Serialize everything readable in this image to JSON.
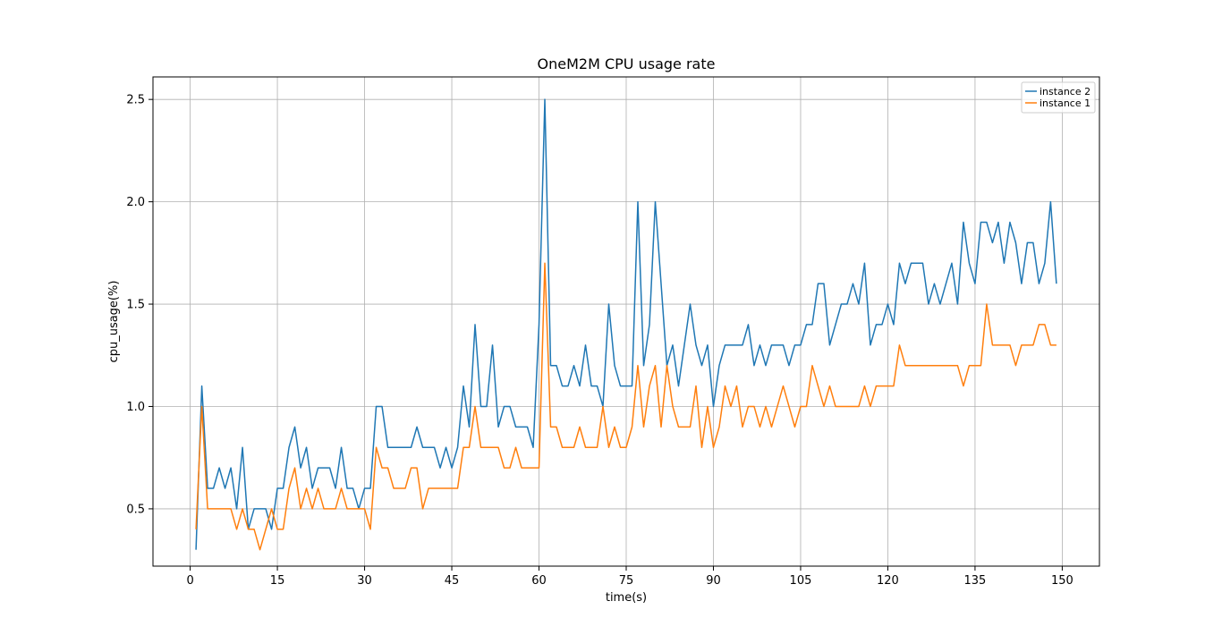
{
  "chart_data": {
    "type": "line",
    "title": "OneM2M CPU usage rate",
    "xlabel": "time(s)",
    "ylabel": "cpu_usage(%)",
    "xlim": [
      -6.4,
      156.4
    ],
    "ylim": [
      0.22,
      2.61
    ],
    "xticks": [
      0,
      15,
      30,
      45,
      60,
      75,
      90,
      105,
      120,
      135,
      150
    ],
    "yticks": [
      0.5,
      1.0,
      1.5,
      2.0,
      2.5
    ],
    "grid": true,
    "legend_position": "top-right",
    "x_start": 1,
    "series": [
      {
        "name": "instance 2",
        "color": "#1f77b4",
        "values": [
          0.3,
          1.1,
          0.6,
          0.6,
          0.7,
          0.6,
          0.7,
          0.5,
          0.8,
          0.4,
          0.5,
          0.5,
          0.5,
          0.4,
          0.6,
          0.6,
          0.8,
          0.9,
          0.7,
          0.8,
          0.6,
          0.7,
          0.7,
          0.7,
          0.6,
          0.8,
          0.6,
          0.6,
          0.5,
          0.6,
          0.6,
          1.0,
          1.0,
          0.8,
          0.8,
          0.8,
          0.8,
          0.8,
          0.9,
          0.8,
          0.8,
          0.8,
          0.7,
          0.8,
          0.7,
          0.8,
          1.1,
          0.9,
          1.4,
          1.0,
          1.0,
          1.3,
          0.9,
          1.0,
          1.0,
          0.9,
          0.9,
          0.9,
          0.8,
          1.4,
          2.5,
          1.2,
          1.2,
          1.1,
          1.1,
          1.2,
          1.1,
          1.3,
          1.1,
          1.1,
          1.0,
          1.5,
          1.2,
          1.1,
          1.1,
          1.1,
          2.0,
          1.2,
          1.4,
          2.0,
          1.6,
          1.2,
          1.3,
          1.1,
          1.3,
          1.5,
          1.3,
          1.2,
          1.3,
          1.0,
          1.2,
          1.3,
          1.3,
          1.3,
          1.3,
          1.4,
          1.2,
          1.3,
          1.2,
          1.3,
          1.3,
          1.3,
          1.2,
          1.3,
          1.3,
          1.4,
          1.4,
          1.6,
          1.6,
          1.3,
          1.4,
          1.5,
          1.5,
          1.6,
          1.5,
          1.7,
          1.3,
          1.4,
          1.4,
          1.5,
          1.4,
          1.7,
          1.6,
          1.7,
          1.7,
          1.7,
          1.5,
          1.6,
          1.5,
          1.6,
          1.7,
          1.5,
          1.9,
          1.7,
          1.6,
          1.9,
          1.9,
          1.8,
          1.9,
          1.7,
          1.9,
          1.8,
          1.6,
          1.8,
          1.8,
          1.6,
          1.7,
          2.0,
          1.6
        ]
      },
      {
        "name": "instance 1",
        "color": "#ff7f0e",
        "values": [
          0.4,
          1.0,
          0.5,
          0.5,
          0.5,
          0.5,
          0.5,
          0.4,
          0.5,
          0.4,
          0.4,
          0.3,
          0.4,
          0.5,
          0.4,
          0.4,
          0.6,
          0.7,
          0.5,
          0.6,
          0.5,
          0.6,
          0.5,
          0.5,
          0.5,
          0.6,
          0.5,
          0.5,
          0.5,
          0.5,
          0.4,
          0.8,
          0.7,
          0.7,
          0.6,
          0.6,
          0.6,
          0.7,
          0.7,
          0.5,
          0.6,
          0.6,
          0.6,
          0.6,
          0.6,
          0.6,
          0.8,
          0.8,
          1.0,
          0.8,
          0.8,
          0.8,
          0.8,
          0.7,
          0.7,
          0.8,
          0.7,
          0.7,
          0.7,
          0.7,
          1.7,
          0.9,
          0.9,
          0.8,
          0.8,
          0.8,
          0.9,
          0.8,
          0.8,
          0.8,
          1.0,
          0.8,
          0.9,
          0.8,
          0.8,
          0.9,
          1.2,
          0.9,
          1.1,
          1.2,
          0.9,
          1.2,
          1.0,
          0.9,
          0.9,
          0.9,
          1.1,
          0.8,
          1.0,
          0.8,
          0.9,
          1.1,
          1.0,
          1.1,
          0.9,
          1.0,
          1.0,
          0.9,
          1.0,
          0.9,
          1.0,
          1.1,
          1.0,
          0.9,
          1.0,
          1.0,
          1.2,
          1.1,
          1.0,
          1.1,
          1.0,
          1.0,
          1.0,
          1.0,
          1.0,
          1.1,
          1.0,
          1.1,
          1.1,
          1.1,
          1.1,
          1.3,
          1.2,
          1.2,
          1.2,
          1.2,
          1.2,
          1.2,
          1.2,
          1.2,
          1.2,
          1.2,
          1.1,
          1.2,
          1.2,
          1.2,
          1.5,
          1.3,
          1.3,
          1.3,
          1.3,
          1.2,
          1.3,
          1.3,
          1.3,
          1.4,
          1.4,
          1.3,
          1.3
        ]
      }
    ]
  }
}
